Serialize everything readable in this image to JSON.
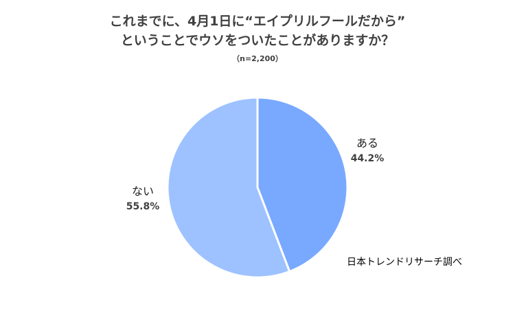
{
  "chart_data": {
    "type": "pie",
    "title_lines": [
      "これまでに、4月1日に“エイプリルフールだから”",
      "ということでウソをついたことがありますか？"
    ],
    "subtitle": "（n=2,200）",
    "slices": [
      {
        "label": "ある",
        "value": 44.2,
        "value_label": "44.2%",
        "color": "#78a9ff"
      },
      {
        "label": "ない",
        "value": 55.8,
        "value_label": "55.8%",
        "color": "#9dc2ff"
      }
    ],
    "start": "12 o'clock",
    "direction": "clockwise",
    "legend": "none"
  },
  "source": "日本トレンドリサーチ調べ"
}
